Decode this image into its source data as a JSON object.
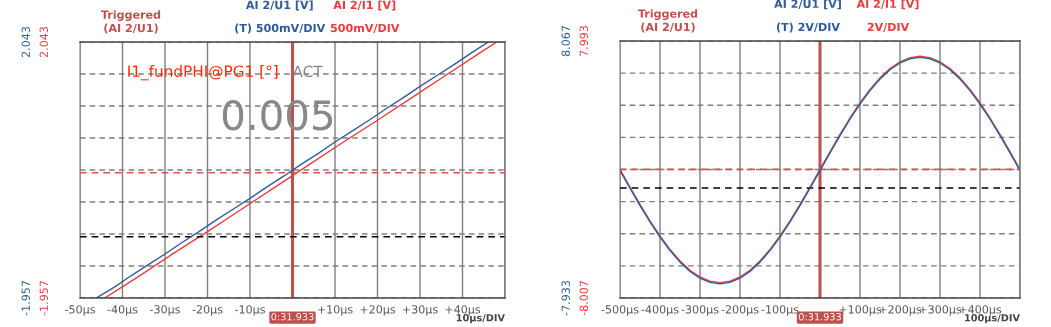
{
  "chart_data": [
    {
      "type": "line",
      "legend": "top",
      "grid": true,
      "xlim": [
        -50,
        50
      ],
      "xticks": [
        {
          "value": -50,
          "label": "-50µs"
        },
        {
          "value": -40,
          "label": "-40µs"
        },
        {
          "value": -30,
          "label": "-30µs"
        },
        {
          "value": -20,
          "label": "-20µs"
        },
        {
          "value": -10,
          "label": "-10µs"
        },
        {
          "value": 0,
          "label": null
        },
        {
          "value": 10,
          "label": "+10µs"
        },
        {
          "value": 20,
          "label": "+20µs"
        },
        {
          "value": 30,
          "label": "+30µs"
        },
        {
          "value": 40,
          "label": "+40µs"
        },
        {
          "value": 50,
          "label": null
        }
      ],
      "ylim": [
        -1.957,
        2.043
      ],
      "yticks": [
        -1.957,
        {
          "value": -1.457,
          "label": null
        },
        {
          "value": -0.957,
          "label": null
        },
        {
          "value": -0.457,
          "label": null
        },
        {
          "value": 0.043,
          "label": null
        },
        {
          "value": 0.543,
          "label": null
        },
        {
          "value": 1.043,
          "label": null
        },
        {
          "value": 1.543,
          "label": null
        },
        2.043
      ],
      "y2lim": [
        -1.957,
        2.043
      ],
      "y2ticks": [
        -1.957,
        2.043
      ],
      "series": [
        {
          "name": "AI 2/U1 [V]",
          "color": "#2e5d9a",
          "axis": "y2",
          "x": [
            -46,
            -42,
            -38,
            -34,
            -30,
            -26,
            -22,
            -18,
            -14,
            -10,
            -6,
            -2,
            2,
            6,
            10,
            14,
            18,
            22,
            26,
            30,
            34,
            38,
            42,
            46
          ],
          "values": [
            -1.95,
            -1.79,
            -1.61,
            -1.44,
            -1.27,
            -1.09,
            -0.92,
            -0.74,
            -0.57,
            -0.4,
            -0.22,
            -0.05,
            0.13,
            0.3,
            0.48,
            0.65,
            0.82,
            1.0,
            1.17,
            1.35,
            1.52,
            1.69,
            1.87,
            2.04
          ]
        },
        {
          "name": "AI 2/I1 [V]",
          "color": "#ee3b3b",
          "x": [
            -44,
            -36,
            -28,
            -20,
            -12,
            -4,
            4,
            12,
            20,
            28,
            36,
            44,
            48
          ],
          "values": [
            -1.95,
            -1.61,
            -1.26,
            -0.92,
            -0.57,
            -0.22,
            0.13,
            0.48,
            0.82,
            1.17,
            1.52,
            1.87,
            2.04
          ]
        }
      ],
      "ref_lines": [
        {
          "axis": "x",
          "value": 0,
          "label": "0:31.933",
          "color": "#c0504d",
          "line_style": "solid"
        },
        {
          "axis": "y",
          "value": 0,
          "color": "#d9534f",
          "line_style": "dashed"
        },
        {
          "axis": "y",
          "value": -1.0,
          "color": "#000000",
          "line_style": "dashed"
        }
      ],
      "annotations": [
        "Triggered\n(AI 2/U1)",
        "(T) 500mV/DIV",
        "500mV/DIV",
        "10µs/DIV",
        "I1_fundPHI@PG1 [°]",
        "ACT",
        "0.005"
      ]
    },
    {
      "type": "line",
      "legend": "top",
      "grid": true,
      "xlim": [
        -500,
        500
      ],
      "xticks": [
        {
          "value": -500,
          "label": "-500µs"
        },
        {
          "value": -400,
          "label": "-400µs"
        },
        {
          "value": -300,
          "label": "-300µs"
        },
        {
          "value": -200,
          "label": "-200µs"
        },
        {
          "value": -100,
          "label": "-100µs"
        },
        {
          "value": 0,
          "label": null
        },
        {
          "value": 100,
          "label": "+100µs"
        },
        {
          "value": 200,
          "label": "+200µs"
        },
        {
          "value": 300,
          "label": "+300µs"
        },
        {
          "value": 400,
          "label": "+400µs"
        },
        {
          "value": 500,
          "label": null
        }
      ],
      "ylim": [
        -8.007,
        7.993
      ],
      "yticks": [
        -8.007,
        {
          "value": -6.007,
          "label": null
        },
        {
          "value": -4.007,
          "label": null
        },
        {
          "value": -2.007,
          "label": null
        },
        {
          "value": -0.007,
          "label": null
        },
        {
          "value": 1.993,
          "label": null
        },
        {
          "value": 3.993,
          "label": null
        },
        {
          "value": 5.993,
          "label": null
        },
        7.993
      ],
      "y2lim": [
        -7.933,
        8.067
      ],
      "y2ticks": [
        -7.933,
        8.067
      ],
      "series": [
        {
          "name": "AI 2/U1 [V]",
          "color": "#2e5d9a",
          "axis": "y2",
          "x": [
            -500,
            -475,
            -450,
            -425,
            -400,
            -375,
            -350,
            -325,
            -300,
            -275,
            -250,
            -225,
            -200,
            -175,
            -150,
            -125,
            -100,
            -75,
            -50,
            -25,
            0,
            25,
            50,
            75,
            100,
            125,
            150,
            175,
            200,
            225,
            250,
            275,
            300,
            325,
            350,
            375,
            400,
            425,
            450,
            475,
            500
          ],
          "values": [
            0,
            -1.1,
            -2.18,
            -3.2,
            -4.14,
            -4.98,
            -5.7,
            -6.28,
            -6.7,
            -6.96,
            -7.05,
            -6.96,
            -6.7,
            -6.28,
            -5.7,
            -4.98,
            -4.14,
            -3.2,
            -2.18,
            -1.1,
            0,
            1.1,
            2.18,
            3.2,
            4.14,
            4.98,
            5.7,
            6.28,
            6.7,
            6.96,
            7.05,
            6.96,
            6.7,
            6.28,
            5.7,
            4.98,
            4.14,
            3.2,
            2.18,
            1.1,
            0
          ]
        },
        {
          "name": "AI 2/I1 [V]",
          "color": "#ee3b3b",
          "x": [
            -500,
            -475,
            -450,
            -425,
            -400,
            -375,
            -350,
            -325,
            -300,
            -275,
            -250,
            -225,
            -200,
            -175,
            -150,
            -125,
            -100,
            -75,
            -50,
            -25,
            0,
            25,
            50,
            75,
            100,
            125,
            150,
            175,
            200,
            225,
            250,
            275,
            300,
            325,
            350,
            375,
            400,
            425,
            450,
            475,
            500
          ],
          "values": [
            0,
            -1.1,
            -2.18,
            -3.2,
            -4.14,
            -4.98,
            -5.7,
            -6.28,
            -6.7,
            -6.96,
            -7.05,
            -6.96,
            -6.7,
            -6.28,
            -5.7,
            -4.98,
            -4.14,
            -3.2,
            -2.18,
            -1.1,
            0,
            1.1,
            2.18,
            3.2,
            4.14,
            4.98,
            5.7,
            6.28,
            6.7,
            6.96,
            7.05,
            6.96,
            6.7,
            6.28,
            5.7,
            4.98,
            4.14,
            3.2,
            2.18,
            1.1,
            0
          ]
        }
      ],
      "ref_lines": [
        {
          "axis": "x",
          "value": 0,
          "label": "0:31.933",
          "color": "#c0504d",
          "line_style": "solid"
        },
        {
          "axis": "y",
          "value": 0,
          "color": "#d9534f",
          "line_style": "dashed"
        },
        {
          "axis": "y",
          "value": -1.16,
          "color": "#000000",
          "line_style": "dashed"
        }
      ],
      "annotations": [
        "Triggered\n(AI 2/U1)",
        "(T) 2V/DIV",
        "2V/DIV",
        "100µs/DIV"
      ]
    }
  ]
}
